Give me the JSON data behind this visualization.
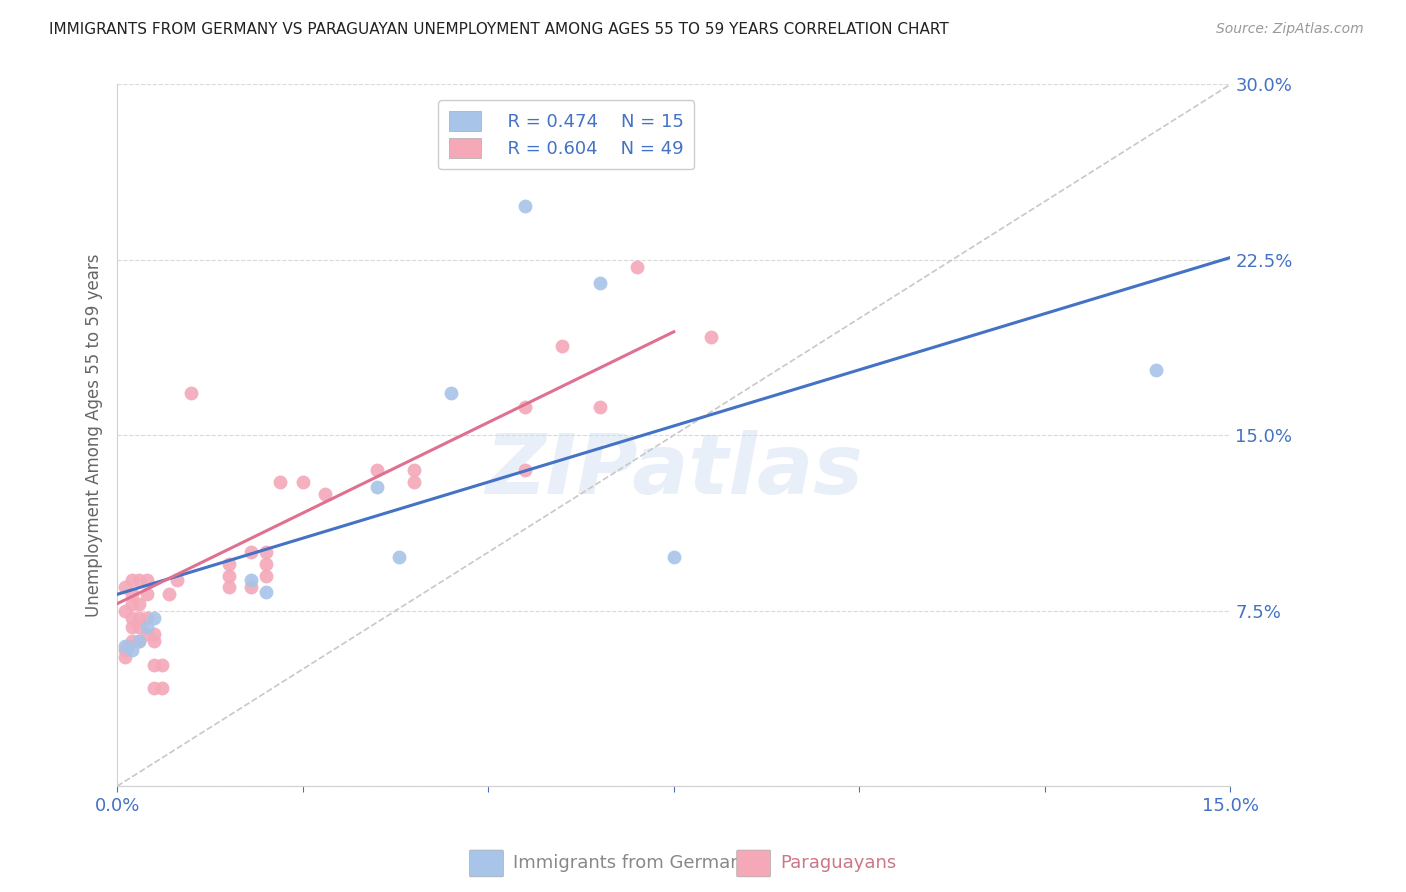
{
  "title": "IMMIGRANTS FROM GERMANY VS PARAGUAYAN UNEMPLOYMENT AMONG AGES 55 TO 59 YEARS CORRELATION CHART",
  "source": "Source: ZipAtlas.com",
  "ylabel": "Unemployment Among Ages 55 to 59 years",
  "xlim": [
    0.0,
    0.15
  ],
  "ylim": [
    0.0,
    0.3
  ],
  "xticks": [
    0.0,
    0.025,
    0.05,
    0.075,
    0.1,
    0.125,
    0.15
  ],
  "xtick_labels": [
    "0.0%",
    "",
    "",
    "",
    "",
    "",
    "15.0%"
  ],
  "ytick_labels": [
    "",
    "7.5%",
    "15.0%",
    "22.5%",
    "30.0%"
  ],
  "yticks": [
    0.0,
    0.075,
    0.15,
    0.225,
    0.3
  ],
  "legend_r_germany": "R = 0.474",
  "legend_n_germany": "N = 15",
  "legend_r_paraguay": "R = 0.604",
  "legend_n_paraguay": "N = 49",
  "germany_color": "#a8c4e8",
  "paraguay_color": "#f4a8b8",
  "germany_line_color": "#4472c4",
  "paraguay_line_color": "#e07090",
  "diagonal_color": "#c8c8c8",
  "watermark": "ZIPatlas",
  "germany_intercept": 0.082,
  "germany_slope": 0.96,
  "paraguay_intercept": 0.078,
  "paraguay_slope": 1.55,
  "germany_scatter": [
    [
      0.001,
      0.06
    ],
    [
      0.002,
      0.058
    ],
    [
      0.003,
      0.062
    ],
    [
      0.004,
      0.068
    ],
    [
      0.005,
      0.072
    ],
    [
      0.018,
      0.088
    ],
    [
      0.02,
      0.083
    ],
    [
      0.035,
      0.128
    ],
    [
      0.038,
      0.098
    ],
    [
      0.045,
      0.168
    ],
    [
      0.05,
      0.268
    ],
    [
      0.055,
      0.248
    ],
    [
      0.065,
      0.215
    ],
    [
      0.075,
      0.098
    ],
    [
      0.14,
      0.178
    ]
  ],
  "paraguay_scatter": [
    [
      0.001,
      0.055
    ],
    [
      0.001,
      0.058
    ],
    [
      0.001,
      0.075
    ],
    [
      0.001,
      0.085
    ],
    [
      0.0015,
      0.06
    ],
    [
      0.002,
      0.062
    ],
    [
      0.002,
      0.068
    ],
    [
      0.002,
      0.072
    ],
    [
      0.002,
      0.078
    ],
    [
      0.002,
      0.082
    ],
    [
      0.002,
      0.088
    ],
    [
      0.003,
      0.062
    ],
    [
      0.003,
      0.068
    ],
    [
      0.003,
      0.072
    ],
    [
      0.003,
      0.078
    ],
    [
      0.003,
      0.088
    ],
    [
      0.004,
      0.065
    ],
    [
      0.004,
      0.072
    ],
    [
      0.004,
      0.082
    ],
    [
      0.004,
      0.088
    ],
    [
      0.005,
      0.042
    ],
    [
      0.005,
      0.052
    ],
    [
      0.005,
      0.062
    ],
    [
      0.005,
      0.065
    ],
    [
      0.006,
      0.042
    ],
    [
      0.006,
      0.052
    ],
    [
      0.007,
      0.082
    ],
    [
      0.008,
      0.088
    ],
    [
      0.01,
      0.168
    ],
    [
      0.015,
      0.085
    ],
    [
      0.015,
      0.09
    ],
    [
      0.015,
      0.095
    ],
    [
      0.018,
      0.085
    ],
    [
      0.018,
      0.1
    ],
    [
      0.02,
      0.09
    ],
    [
      0.02,
      0.095
    ],
    [
      0.02,
      0.1
    ],
    [
      0.022,
      0.13
    ],
    [
      0.025,
      0.13
    ],
    [
      0.028,
      0.125
    ],
    [
      0.035,
      0.135
    ],
    [
      0.04,
      0.13
    ],
    [
      0.04,
      0.135
    ],
    [
      0.055,
      0.135
    ],
    [
      0.055,
      0.162
    ],
    [
      0.06,
      0.188
    ],
    [
      0.065,
      0.162
    ],
    [
      0.07,
      0.222
    ],
    [
      0.08,
      0.192
    ]
  ]
}
